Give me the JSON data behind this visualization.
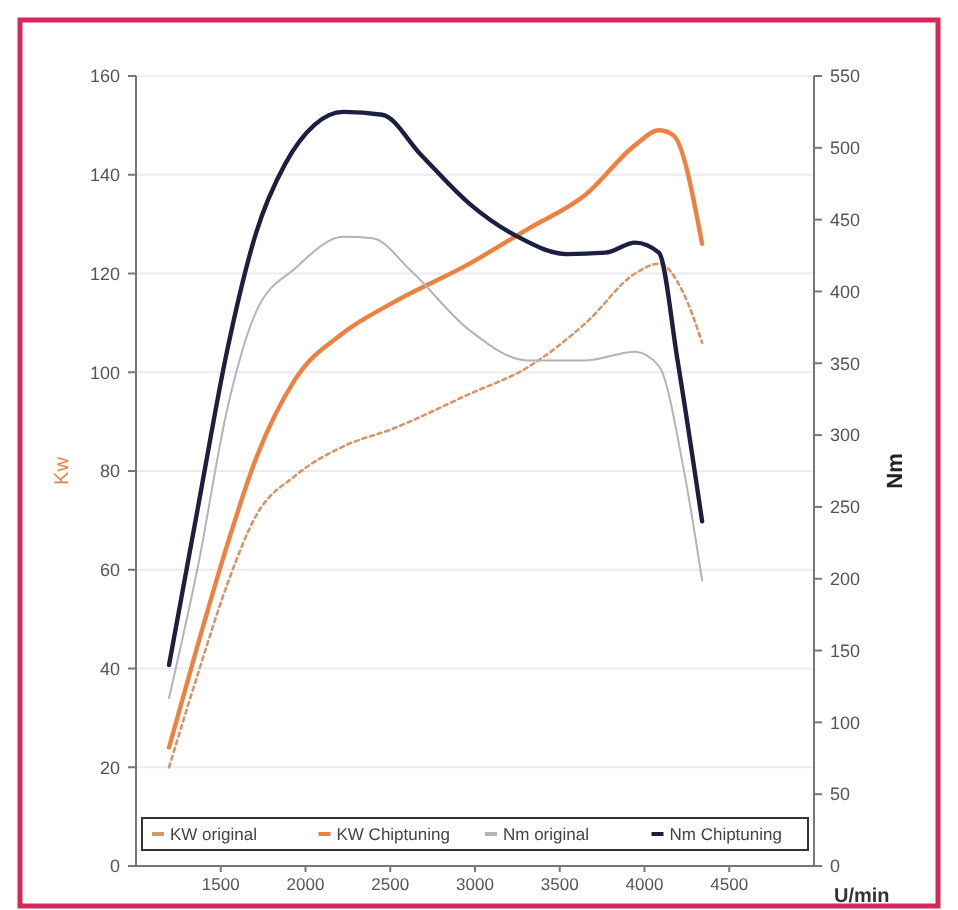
{
  "chart_data": {
    "type": "line",
    "xlabel": "U/min",
    "ylabel": "Kw",
    "y2label": "Nm",
    "xlim": [
      1000,
      5000
    ],
    "xticks": [
      1500,
      2000,
      2500,
      3000,
      3500,
      4000,
      4500
    ],
    "ylim": [
      0,
      160
    ],
    "yticks": [
      0,
      20,
      40,
      60,
      80,
      100,
      120,
      140,
      160
    ],
    "y2lim": [
      0,
      550
    ],
    "y2ticks": [
      0,
      50,
      100,
      150,
      200,
      250,
      300,
      350,
      400,
      450,
      500,
      550
    ],
    "grid": "y",
    "legend": "bottom",
    "marker": "none",
    "series": [
      {
        "name": "KW original",
        "color": "#d8956a",
        "line_style": "dotted",
        "x": [
          1195,
          1366,
          1538,
          1709,
          1938,
          2224,
          2510,
          2968,
          3311,
          3654,
          3945,
          4085,
          4230,
          4340
        ],
        "values": [
          20,
          39,
          57,
          71,
          79,
          85,
          88.5,
          95.6,
          101,
          110,
          120,
          122,
          116,
          106
        ]
      },
      {
        "name": "KW Chiptuning",
        "color": "#f08040",
        "line_style": "solid",
        "x": [
          1195,
          1366,
          1538,
          1709,
          1938,
          2224,
          2510,
          2968,
          3311,
          3654,
          3945,
          4085,
          4170,
          4340
        ],
        "values": [
          24,
          45,
          65,
          82.6,
          98.5,
          108,
          114,
          122,
          129,
          136,
          146,
          149,
          148,
          126
        ]
      },
      {
        "name": "Nm original",
        "color": "#b4b4b8",
        "line_style": "solid",
        "axis": "y2",
        "x": [
          1195,
          1366,
          1538,
          1709,
          1938,
          2224,
          2396,
          2625,
          2968,
          3311,
          3654,
          3945,
          4085,
          4230,
          4340
        ],
        "values": [
          117,
          209,
          318,
          386,
          416,
          438,
          437,
          414,
          373,
          352,
          352,
          358,
          348,
          277,
          199
        ]
      },
      {
        "name": "Nm Chiptuning",
        "color": "#1c2040",
        "line_style": "solid",
        "axis": "y2",
        "x": [
          1195,
          1366,
          1538,
          1709,
          1881,
          2053,
          2224,
          2453,
          2682,
          2968,
          3254,
          3540,
          3769,
          3945,
          4085,
          4195,
          4340
        ],
        "values": [
          140,
          250,
          359,
          441,
          489,
          516,
          525,
          523,
          495,
          461,
          438,
          426,
          427,
          434,
          427,
          352,
          240
        ]
      }
    ]
  }
}
